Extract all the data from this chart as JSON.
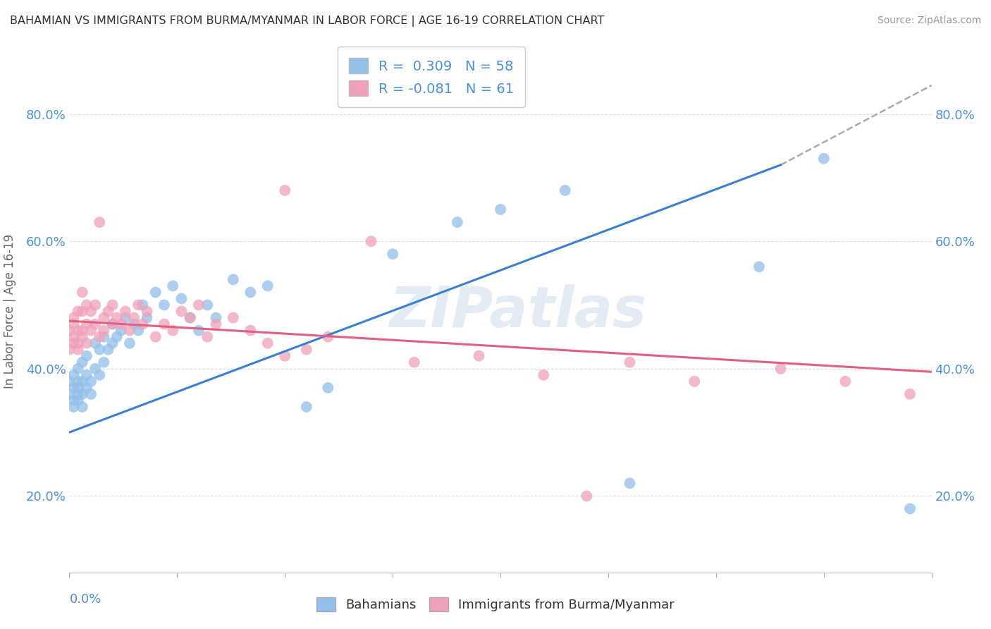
{
  "title": "BAHAMIAN VS IMMIGRANTS FROM BURMA/MYANMAR IN LABOR FORCE | AGE 16-19 CORRELATION CHART",
  "source": "Source: ZipAtlas.com",
  "ylabel_label": "In Labor Force | Age 16-19",
  "watermark": "ZIPatlas",
  "blue_R": 0.309,
  "blue_N": 58,
  "pink_R": -0.081,
  "pink_N": 61,
  "blue_color": "#92c0ea",
  "pink_color": "#f0a0b8",
  "blue_line_color": "#3a7fd4",
  "pink_line_color": "#e06080",
  "blue_scatter_x": [
    0.0,
    0.0,
    0.001,
    0.001,
    0.001,
    0.001,
    0.002,
    0.002,
    0.002,
    0.002,
    0.002,
    0.003,
    0.003,
    0.003,
    0.003,
    0.004,
    0.004,
    0.004,
    0.005,
    0.005,
    0.006,
    0.006,
    0.007,
    0.007,
    0.008,
    0.008,
    0.009,
    0.01,
    0.01,
    0.011,
    0.012,
    0.013,
    0.014,
    0.015,
    0.016,
    0.017,
    0.018,
    0.02,
    0.022,
    0.024,
    0.026,
    0.028,
    0.03,
    0.032,
    0.034,
    0.038,
    0.042,
    0.046,
    0.055,
    0.06,
    0.075,
    0.09,
    0.1,
    0.115,
    0.13,
    0.16,
    0.175,
    0.195
  ],
  "blue_scatter_y": [
    0.36,
    0.38,
    0.35,
    0.37,
    0.39,
    0.34,
    0.36,
    0.38,
    0.35,
    0.37,
    0.4,
    0.36,
    0.38,
    0.41,
    0.34,
    0.37,
    0.39,
    0.42,
    0.38,
    0.36,
    0.4,
    0.44,
    0.39,
    0.43,
    0.41,
    0.45,
    0.43,
    0.44,
    0.47,
    0.45,
    0.46,
    0.48,
    0.44,
    0.47,
    0.46,
    0.5,
    0.48,
    0.52,
    0.5,
    0.53,
    0.51,
    0.48,
    0.46,
    0.5,
    0.48,
    0.54,
    0.52,
    0.53,
    0.34,
    0.37,
    0.58,
    0.63,
    0.65,
    0.68,
    0.22,
    0.56,
    0.73,
    0.18
  ],
  "pink_scatter_x": [
    0.0,
    0.0,
    0.001,
    0.001,
    0.001,
    0.001,
    0.002,
    0.002,
    0.002,
    0.002,
    0.003,
    0.003,
    0.003,
    0.003,
    0.004,
    0.004,
    0.004,
    0.005,
    0.005,
    0.006,
    0.006,
    0.007,
    0.007,
    0.008,
    0.008,
    0.009,
    0.01,
    0.01,
    0.011,
    0.012,
    0.013,
    0.014,
    0.015,
    0.016,
    0.017,
    0.018,
    0.02,
    0.022,
    0.024,
    0.026,
    0.028,
    0.03,
    0.032,
    0.034,
    0.038,
    0.042,
    0.046,
    0.05,
    0.055,
    0.06,
    0.07,
    0.08,
    0.095,
    0.11,
    0.13,
    0.145,
    0.165,
    0.18,
    0.195,
    0.05,
    0.12
  ],
  "pink_scatter_y": [
    0.43,
    0.46,
    0.44,
    0.47,
    0.45,
    0.48,
    0.43,
    0.46,
    0.49,
    0.44,
    0.46,
    0.49,
    0.52,
    0.45,
    0.47,
    0.5,
    0.44,
    0.46,
    0.49,
    0.47,
    0.5,
    0.45,
    0.63,
    0.48,
    0.46,
    0.49,
    0.47,
    0.5,
    0.48,
    0.47,
    0.49,
    0.46,
    0.48,
    0.5,
    0.47,
    0.49,
    0.45,
    0.47,
    0.46,
    0.49,
    0.48,
    0.5,
    0.45,
    0.47,
    0.48,
    0.46,
    0.44,
    0.42,
    0.43,
    0.45,
    0.6,
    0.41,
    0.42,
    0.39,
    0.41,
    0.38,
    0.4,
    0.38,
    0.36,
    0.68,
    0.2
  ],
  "blue_line_x0": 0.0,
  "blue_line_y0": 0.3,
  "blue_line_x1": 0.165,
  "blue_line_y1": 0.72,
  "pink_line_x0": 0.0,
  "pink_line_y0": 0.475,
  "pink_line_x1": 0.2,
  "pink_line_y1": 0.395,
  "dash_line_x0": 0.165,
  "dash_line_y0": 0.72,
  "dash_line_x1": 0.2,
  "dash_line_y1": 0.845,
  "xlim": [
    0.0,
    0.2
  ],
  "ylim": [
    0.08,
    0.9
  ],
  "yticks": [
    0.2,
    0.4,
    0.6,
    0.8
  ],
  "ytick_labels": [
    "20.0%",
    "40.0%",
    "60.0%",
    "80.0%"
  ],
  "background_color": "#ffffff",
  "grid_color": "#dddddd"
}
